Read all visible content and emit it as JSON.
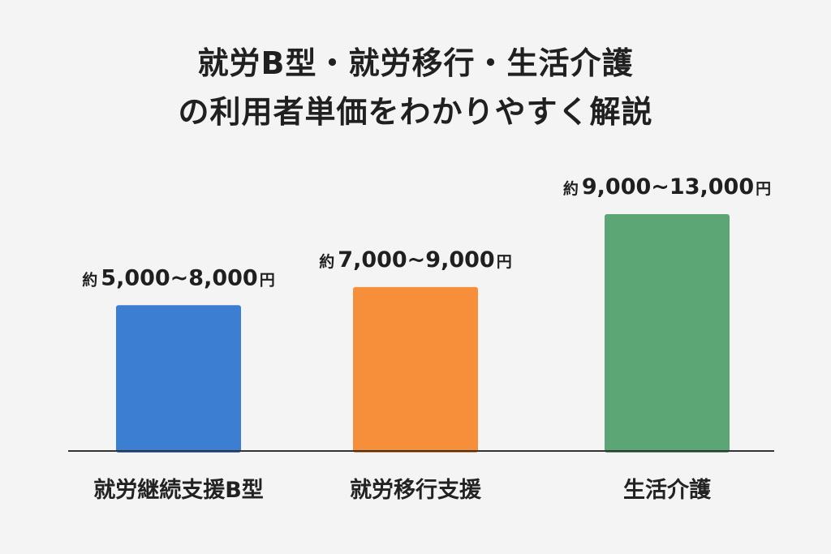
{
  "chart_data": {
    "type": "bar",
    "title": "就労B型・就労移行・生活介護\nの利用者単価をわかりやすく解説",
    "title_lines": [
      "就労B型・就労移行・生活介護",
      "の利用者単価をわかりやすく解説"
    ],
    "categories": [
      "就労継続支援B型",
      "就労移行支援",
      "生活介護"
    ],
    "values": [
      [
        5000,
        8000
      ],
      [
        7000,
        9000
      ],
      [
        9000,
        13000
      ]
    ],
    "value_labels": [
      {
        "prefix": "約",
        "range": "5,000~8,000",
        "suffix": "円"
      },
      {
        "prefix": "約",
        "range": "7,000~9,000",
        "suffix": "円"
      },
      {
        "prefix": "約",
        "range": "9,000~13,000",
        "suffix": "円"
      }
    ],
    "colors": [
      "#3c7fd2",
      "#f68e3a",
      "#5ca574"
    ],
    "axis_color": "#333333",
    "grid": false,
    "legend": "none",
    "xlabel": "",
    "ylabel": "",
    "ylim": [
      0,
      13000
    ]
  }
}
